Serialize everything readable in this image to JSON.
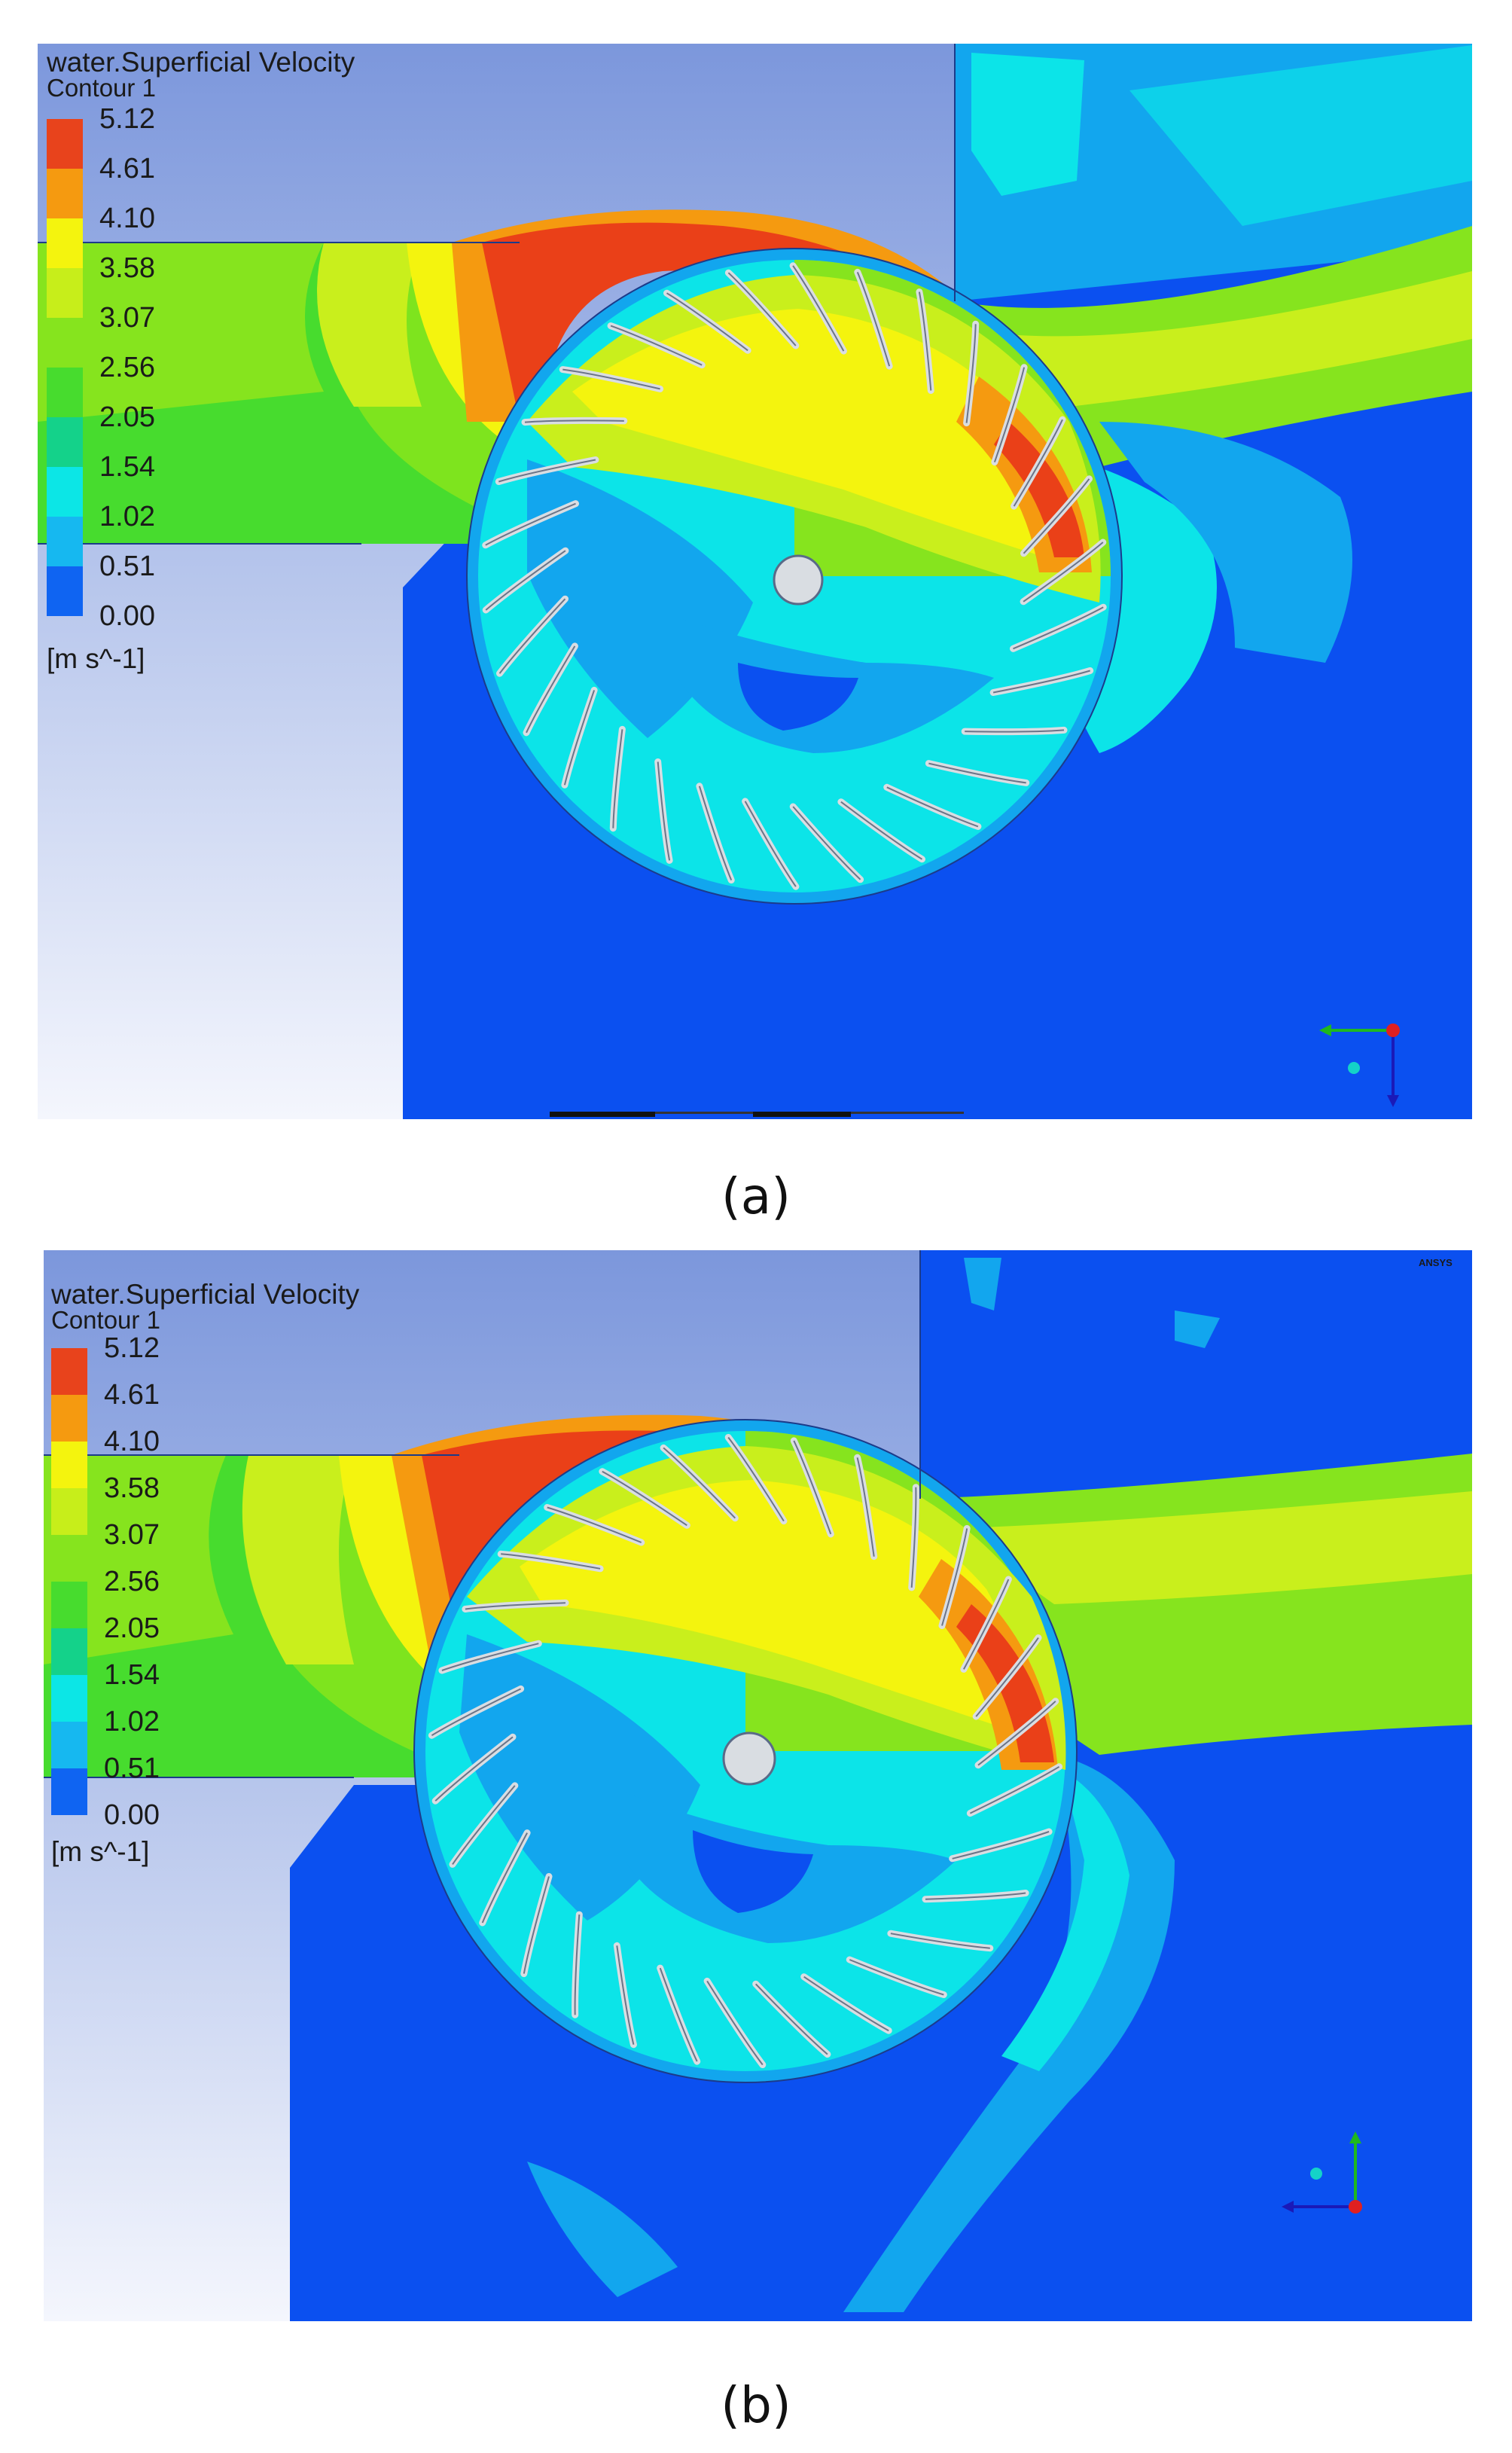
{
  "panels": [
    {
      "id": "a",
      "title": "water.Superficial Velocity",
      "subtitle": "Contour 1",
      "units": "[m s^-1]",
      "caption": "(a)",
      "watermark": ""
    },
    {
      "id": "b",
      "title": "water.Superficial Velocity",
      "subtitle": "Contour 1",
      "units": "[m s^-1]",
      "caption": "(b)",
      "watermark": "ANSYS"
    }
  ],
  "legend": {
    "levels": [
      "5.12",
      "4.61",
      "4.10",
      "3.58",
      "3.07",
      "2.56",
      "2.05",
      "1.54",
      "1.02",
      "0.51",
      "0.00"
    ],
    "colors": [
      "#e8431c",
      "#f59a10",
      "#f4f40e",
      "#c7ee1a",
      "#86e41e",
      "#47dc2e",
      "#14d28a",
      "#0ce6e6",
      "#16b8f0",
      "#0f64f2"
    ]
  },
  "colors": {
    "deep_blue": "#0b50f0",
    "light_blue": "#12a6ee",
    "cyan": "#0ce4e8",
    "green": "#7ee41e",
    "yellow_green": "#c9ef1c",
    "yellow": "#f4f40e",
    "orange": "#f59a10",
    "red": "#ea4018",
    "air_top": "#7f9bde",
    "blade": "#d9dde2"
  },
  "icons": [
    "coordinate-axes-icon",
    "ansys-logo"
  ]
}
